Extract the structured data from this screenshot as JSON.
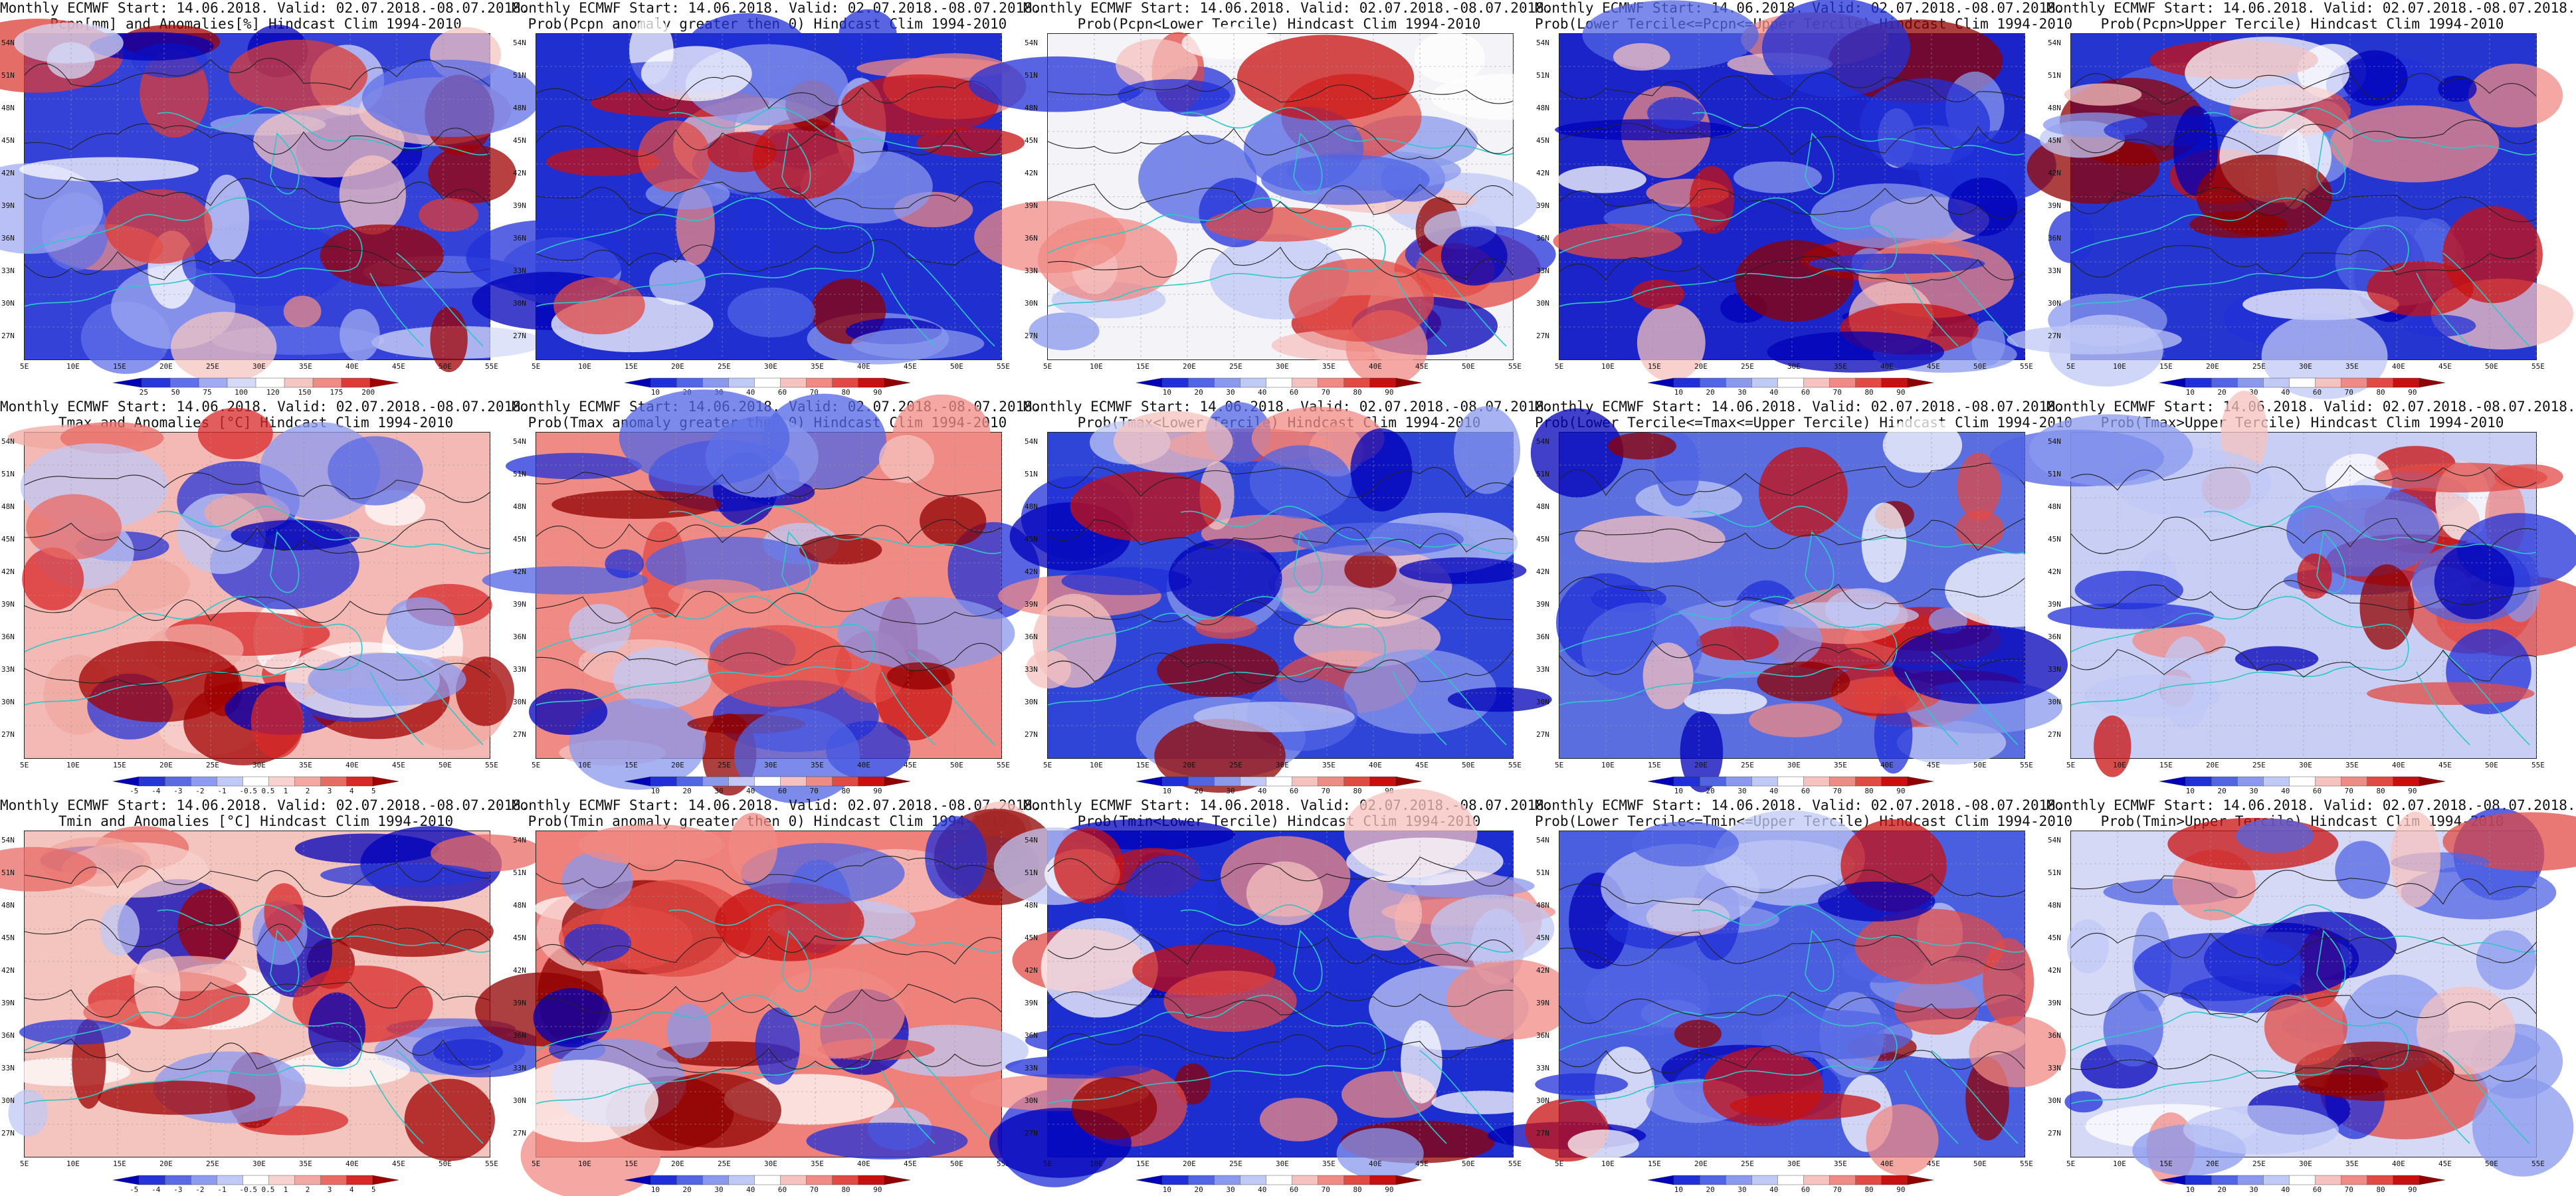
{
  "panels": [
    {
      "title_line1": "Monthly ECMWF Start: 14.06.2018. Valid: 02.07.2018.-08.07.2018.",
      "title_line2": "Pcpn[mm] and Anomalies[%] Hindcast Clim 1994-2010",
      "base": "#3542d8",
      "palette": "anom",
      "cbar_labels": [
        "25",
        "50",
        "75",
        "100",
        "120",
        "150",
        "175",
        "200"
      ]
    },
    {
      "title_line1": "Monthly ECMWF Start: 14.06.2018. Valid: 02.07.2018.-08.07.2018.",
      "title_line2": "Prob(Pcpn anomaly greater then 0) Hindcast Clim 1994-2010",
      "base": "#1f2fd0",
      "palette": "prob",
      "cbar_labels": [
        "10",
        "20",
        "30",
        "40",
        "60",
        "70",
        "80",
        "90"
      ]
    },
    {
      "title_line1": "Monthly ECMWF Start: 14.06.2018. Valid: 02.07.2018.-08.07.2018.",
      "title_line2": "Prob(Pcpn<Lower Tercile) Hindcast Clim 1994-2010",
      "base": "#f3f3f8",
      "palette": "prob",
      "cbar_labels": [
        "10",
        "20",
        "30",
        "40",
        "60",
        "70",
        "80",
        "90"
      ]
    },
    {
      "title_line1": "Monthly ECMWF Start: 14.06.2018. Valid: 02.07.2018.-08.07.2018.",
      "title_line2": "Prob(Lower Tercile<=Pcpn<=Upper Tercile) Hindcast Clim 1994-2010",
      "base": "#1a24c8",
      "palette": "prob",
      "cbar_labels": [
        "10",
        "20",
        "30",
        "40",
        "60",
        "70",
        "80",
        "90"
      ]
    },
    {
      "title_line1": "Monthly ECMWF Start: 14.06.2018. Valid: 02.07.2018.-08.07.2018.",
      "title_line2": "Prob(Pcpn>Upper Tercile) Hindcast Clim 1994-2010",
      "base": "#2535d0",
      "palette": "prob",
      "cbar_labels": [
        "10",
        "20",
        "30",
        "40",
        "60",
        "70",
        "80",
        "90"
      ]
    },
    {
      "title_line1": "Monthly ECMWF Start: 14.06.2018. Valid: 02.07.2018.-08.07.2018.",
      "title_line2": "Tmax and Anomalies [°C] Hindcast Clim 1994-2010",
      "base": "#f4b9b4",
      "palette": "temp",
      "cbar_labels": [
        "-5",
        "-4",
        "-3",
        "-2",
        "-1",
        "-0.5",
        "0.5",
        "1",
        "2",
        "3",
        "4",
        "5"
      ]
    },
    {
      "title_line1": "Monthly ECMWF Start: 14.06.2018. Valid: 02.07.2018.-08.07.2018.",
      "title_line2": "Prob(Tmax anomaly greater then 0) Hindcast Clim 1994-2010",
      "base": "#f08a84",
      "palette": "prob",
      "cbar_labels": [
        "10",
        "20",
        "30",
        "40",
        "60",
        "70",
        "80",
        "90"
      ]
    },
    {
      "title_line1": "Monthly ECMWF Start: 14.06.2018. Valid: 02.07.2018.-08.07.2018.",
      "title_line2": "Prob(Tmax<Lower Tercile) Hindcast Clim 1994-2010",
      "base": "#2f45d8",
      "palette": "prob",
      "cbar_labels": [
        "10",
        "20",
        "30",
        "40",
        "60",
        "70",
        "80",
        "90"
      ]
    },
    {
      "title_line1": "Monthly ECMWF Start: 14.06.2018. Valid: 02.07.2018.-08.07.2018.",
      "title_line2": "Prob(Lower Tercile<=Tmax<=Upper Tercile) Hindcast Clim 1994-2010",
      "base": "#5a6ee0",
      "palette": "prob",
      "cbar_labels": [
        "10",
        "20",
        "30",
        "40",
        "60",
        "70",
        "80",
        "90"
      ]
    },
    {
      "title_line1": "Monthly ECMWF Start: 14.06.2018. Valid: 02.07.2018.-08.07.2018.",
      "title_line2": "Prob(Tmax>Upper Tercile) Hindcast Clim 1994-2010",
      "base": "#c9cff4",
      "palette": "prob",
      "cbar_labels": [
        "10",
        "20",
        "30",
        "40",
        "60",
        "70",
        "80",
        "90"
      ]
    },
    {
      "title_line1": "Monthly ECMWF Start: 14.06.2018. Valid: 02.07.2018.-08.07.2018.",
      "title_line2": "Tmin and Anomalies [°C] Hindcast Clim 1994-2010",
      "base": "#f4c4be",
      "palette": "temp",
      "cbar_labels": [
        "-5",
        "-4",
        "-3",
        "-2",
        "-1",
        "-0.5",
        "0.5",
        "1",
        "2",
        "3",
        "4",
        "5"
      ]
    },
    {
      "title_line1": "Monthly ECMWF Start: 14.06.2018. Valid: 02.07.2018.-08.07.2018.",
      "title_line2": "Prob(Tmin anomaly greater then 0) Hindcast Clim 1994-2010",
      "base": "#f0807a",
      "palette": "prob",
      "cbar_labels": [
        "10",
        "20",
        "30",
        "40",
        "60",
        "70",
        "80",
        "90"
      ]
    },
    {
      "title_line1": "Monthly ECMWF Start: 14.06.2018. Valid: 02.07.2018.-08.07.2018.",
      "title_line2": "Prob(Tmin<Lower Tercile) Hindcast Clim 1994-2010",
      "base": "#1c2ed0",
      "palette": "prob",
      "cbar_labels": [
        "10",
        "20",
        "30",
        "40",
        "60",
        "70",
        "80",
        "90"
      ]
    },
    {
      "title_line1": "Monthly ECMWF Start: 14.06.2018. Valid: 02.07.2018.-08.07.2018.",
      "title_line2": "Prob(Lower Tercile<=Tmin<=Upper Tercile) Hindcast Clim 1994-2010",
      "base": "#4a5ee0",
      "palette": "prob",
      "cbar_labels": [
        "10",
        "20",
        "30",
        "40",
        "60",
        "70",
        "80",
        "90"
      ]
    },
    {
      "title_line1": "Monthly ECMWF Start: 14.06.2018. Valid: 02.07.2018.-08.07.2018.",
      "title_line2": "Prob(Tmin>Upper Tercile) Hindcast Clim 1994-2010",
      "base": "#d6d9f5",
      "palette": "prob",
      "cbar_labels": [
        "10",
        "20",
        "30",
        "40",
        "60",
        "70",
        "80",
        "90"
      ]
    }
  ],
  "lat_labels": [
    "54N",
    "51N",
    "48N",
    "45N",
    "42N",
    "39N",
    "36N",
    "33N",
    "30N",
    "27N"
  ],
  "lon_labels": [
    "5E",
    "10E",
    "15E",
    "20E",
    "25E",
    "30E",
    "35E",
    "40E",
    "45E",
    "50E",
    "55E"
  ],
  "palettes": {
    "prob": [
      "#0000b8",
      "#2030d8",
      "#5064e4",
      "#8a98ee",
      "#c0c8f6",
      "#ffffff",
      "#f6c2bf",
      "#f08a84",
      "#e24a44",
      "#c81010",
      "#900000"
    ],
    "anom": [
      "#0000b8",
      "#2838d8",
      "#6070e8",
      "#a0abf2",
      "#d4daf8",
      "#ffffff",
      "#f6c6c2",
      "#ee8c86",
      "#dc3c36",
      "#a00000"
    ],
    "temp": [
      "#0000b8",
      "#2535d8",
      "#5a6ae4",
      "#8c9af0",
      "#c0c8f6",
      "#ffffff",
      "#f8d2ce",
      "#f2a8a2",
      "#e86a64",
      "#d82828",
      "#a00000"
    ]
  }
}
